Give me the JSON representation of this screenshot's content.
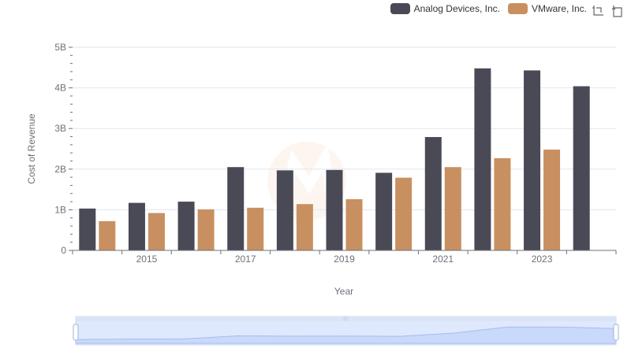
{
  "chart_data": {
    "type": "bar",
    "title": "",
    "xlabel": "Year",
    "ylabel": "Cost of Revenue",
    "categories": [
      "2014",
      "2015",
      "2016",
      "2017",
      "2018",
      "2019",
      "2020",
      "2021",
      "2022",
      "2023",
      "2024"
    ],
    "x_tick_labels": [
      "2015",
      "2017",
      "2019",
      "2021",
      "2023"
    ],
    "y_tick_labels": [
      "0",
      "1B",
      "2B",
      "3B",
      "4B",
      "5B"
    ],
    "ylim": [
      0,
      5000000000
    ],
    "grid": true,
    "legend_position": "top-right",
    "series": [
      {
        "name": "Analog Devices, Inc.",
        "color": "#4a4a56",
        "values": [
          1030000000,
          1170000000,
          1200000000,
          2050000000,
          1970000000,
          1980000000,
          1910000000,
          2790000000,
          4480000000,
          4430000000,
          4040000000
        ]
      },
      {
        "name": "VMware, Inc.",
        "color": "#c89060",
        "values": [
          720000000,
          920000000,
          1010000000,
          1050000000,
          1140000000,
          1260000000,
          1790000000,
          2050000000,
          2270000000,
          2480000000,
          null
        ]
      }
    ]
  },
  "legend": {
    "items": [
      {
        "label": "Analog Devices, Inc.",
        "color": "#4a4a56"
      },
      {
        "label": "VMware, Inc.",
        "color": "#c89060"
      }
    ]
  },
  "toolbox": {
    "icons": [
      "zoom-icon",
      "zoom-reset-icon"
    ]
  },
  "data_zoom": {
    "start_percent": 0,
    "end_percent": 100,
    "fill_color": "#d8e2fa"
  }
}
